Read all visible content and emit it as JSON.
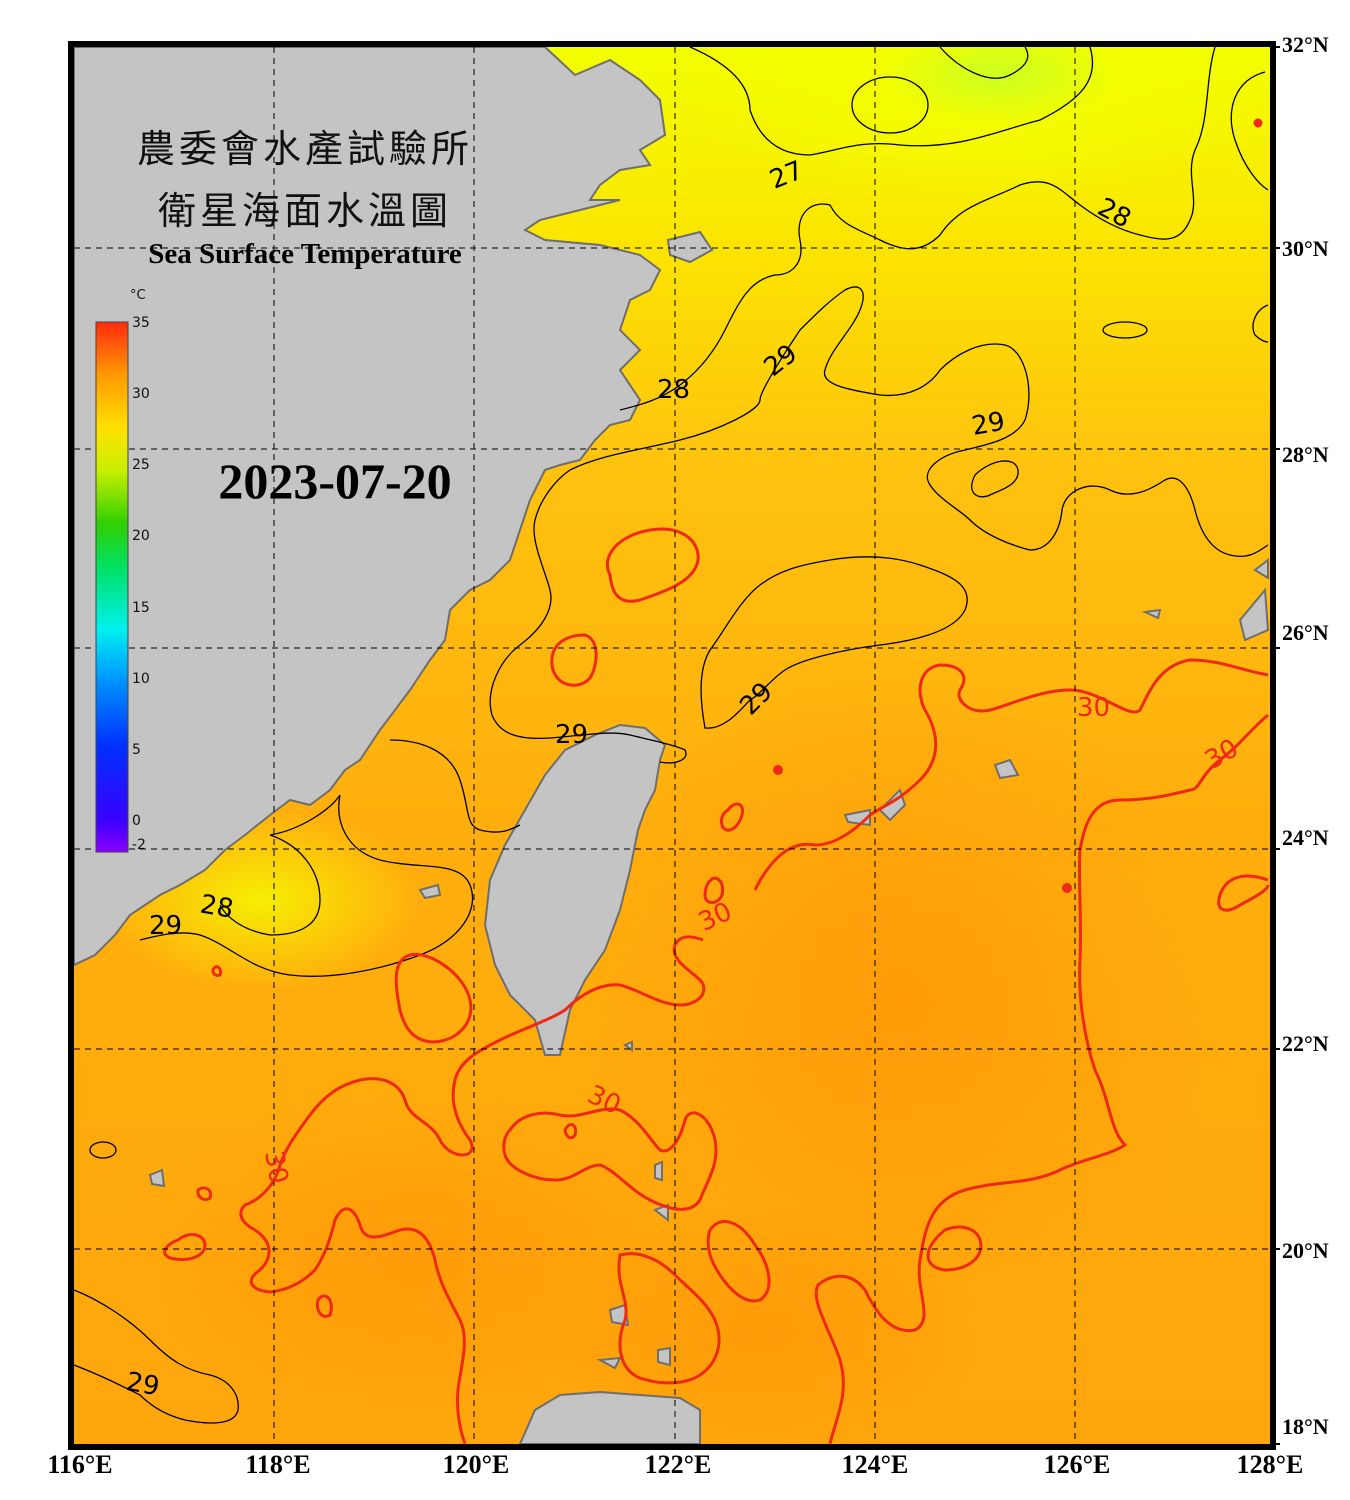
{
  "title": {
    "zh_line1": "農委會水產試驗所",
    "zh_line2": "衛星海面水溫圖",
    "en": "Sea Surface Temperature"
  },
  "date": "2023-07-20",
  "colorbar": {
    "unit": "°C",
    "ticks": [
      "35",
      "30",
      "25",
      "20",
      "15",
      "10",
      "5",
      "0",
      "-2"
    ],
    "min": -2,
    "max": 35
  },
  "axes": {
    "lat_labels": [
      "32°N",
      "30°N",
      "28°N",
      "26°N",
      "24°N",
      "22°N",
      "20°N",
      "18°N"
    ],
    "lon_labels": [
      "116°E",
      "118°E",
      "120°E",
      "122°E",
      "124°E",
      "126°E",
      "128°E"
    ],
    "lat_range": [
      18,
      32
    ],
    "lon_range": [
      116,
      128
    ]
  },
  "contours": {
    "labels": [
      "27",
      "28",
      "28",
      "29",
      "29",
      "29",
      "29",
      "28",
      "29",
      "29",
      "30",
      "30",
      "30",
      "30",
      "30"
    ],
    "colors": {
      "isotherm": "#000000",
      "isotherm_30": "#ee2a16"
    }
  },
  "colors": {
    "land": "#c4c4c4",
    "coast": "#6e6e6e",
    "sea_warm": "#ffa00a",
    "sea_mid": "#ffc011",
    "sea_cool": "#f2ff00",
    "frame": "#000000"
  }
}
